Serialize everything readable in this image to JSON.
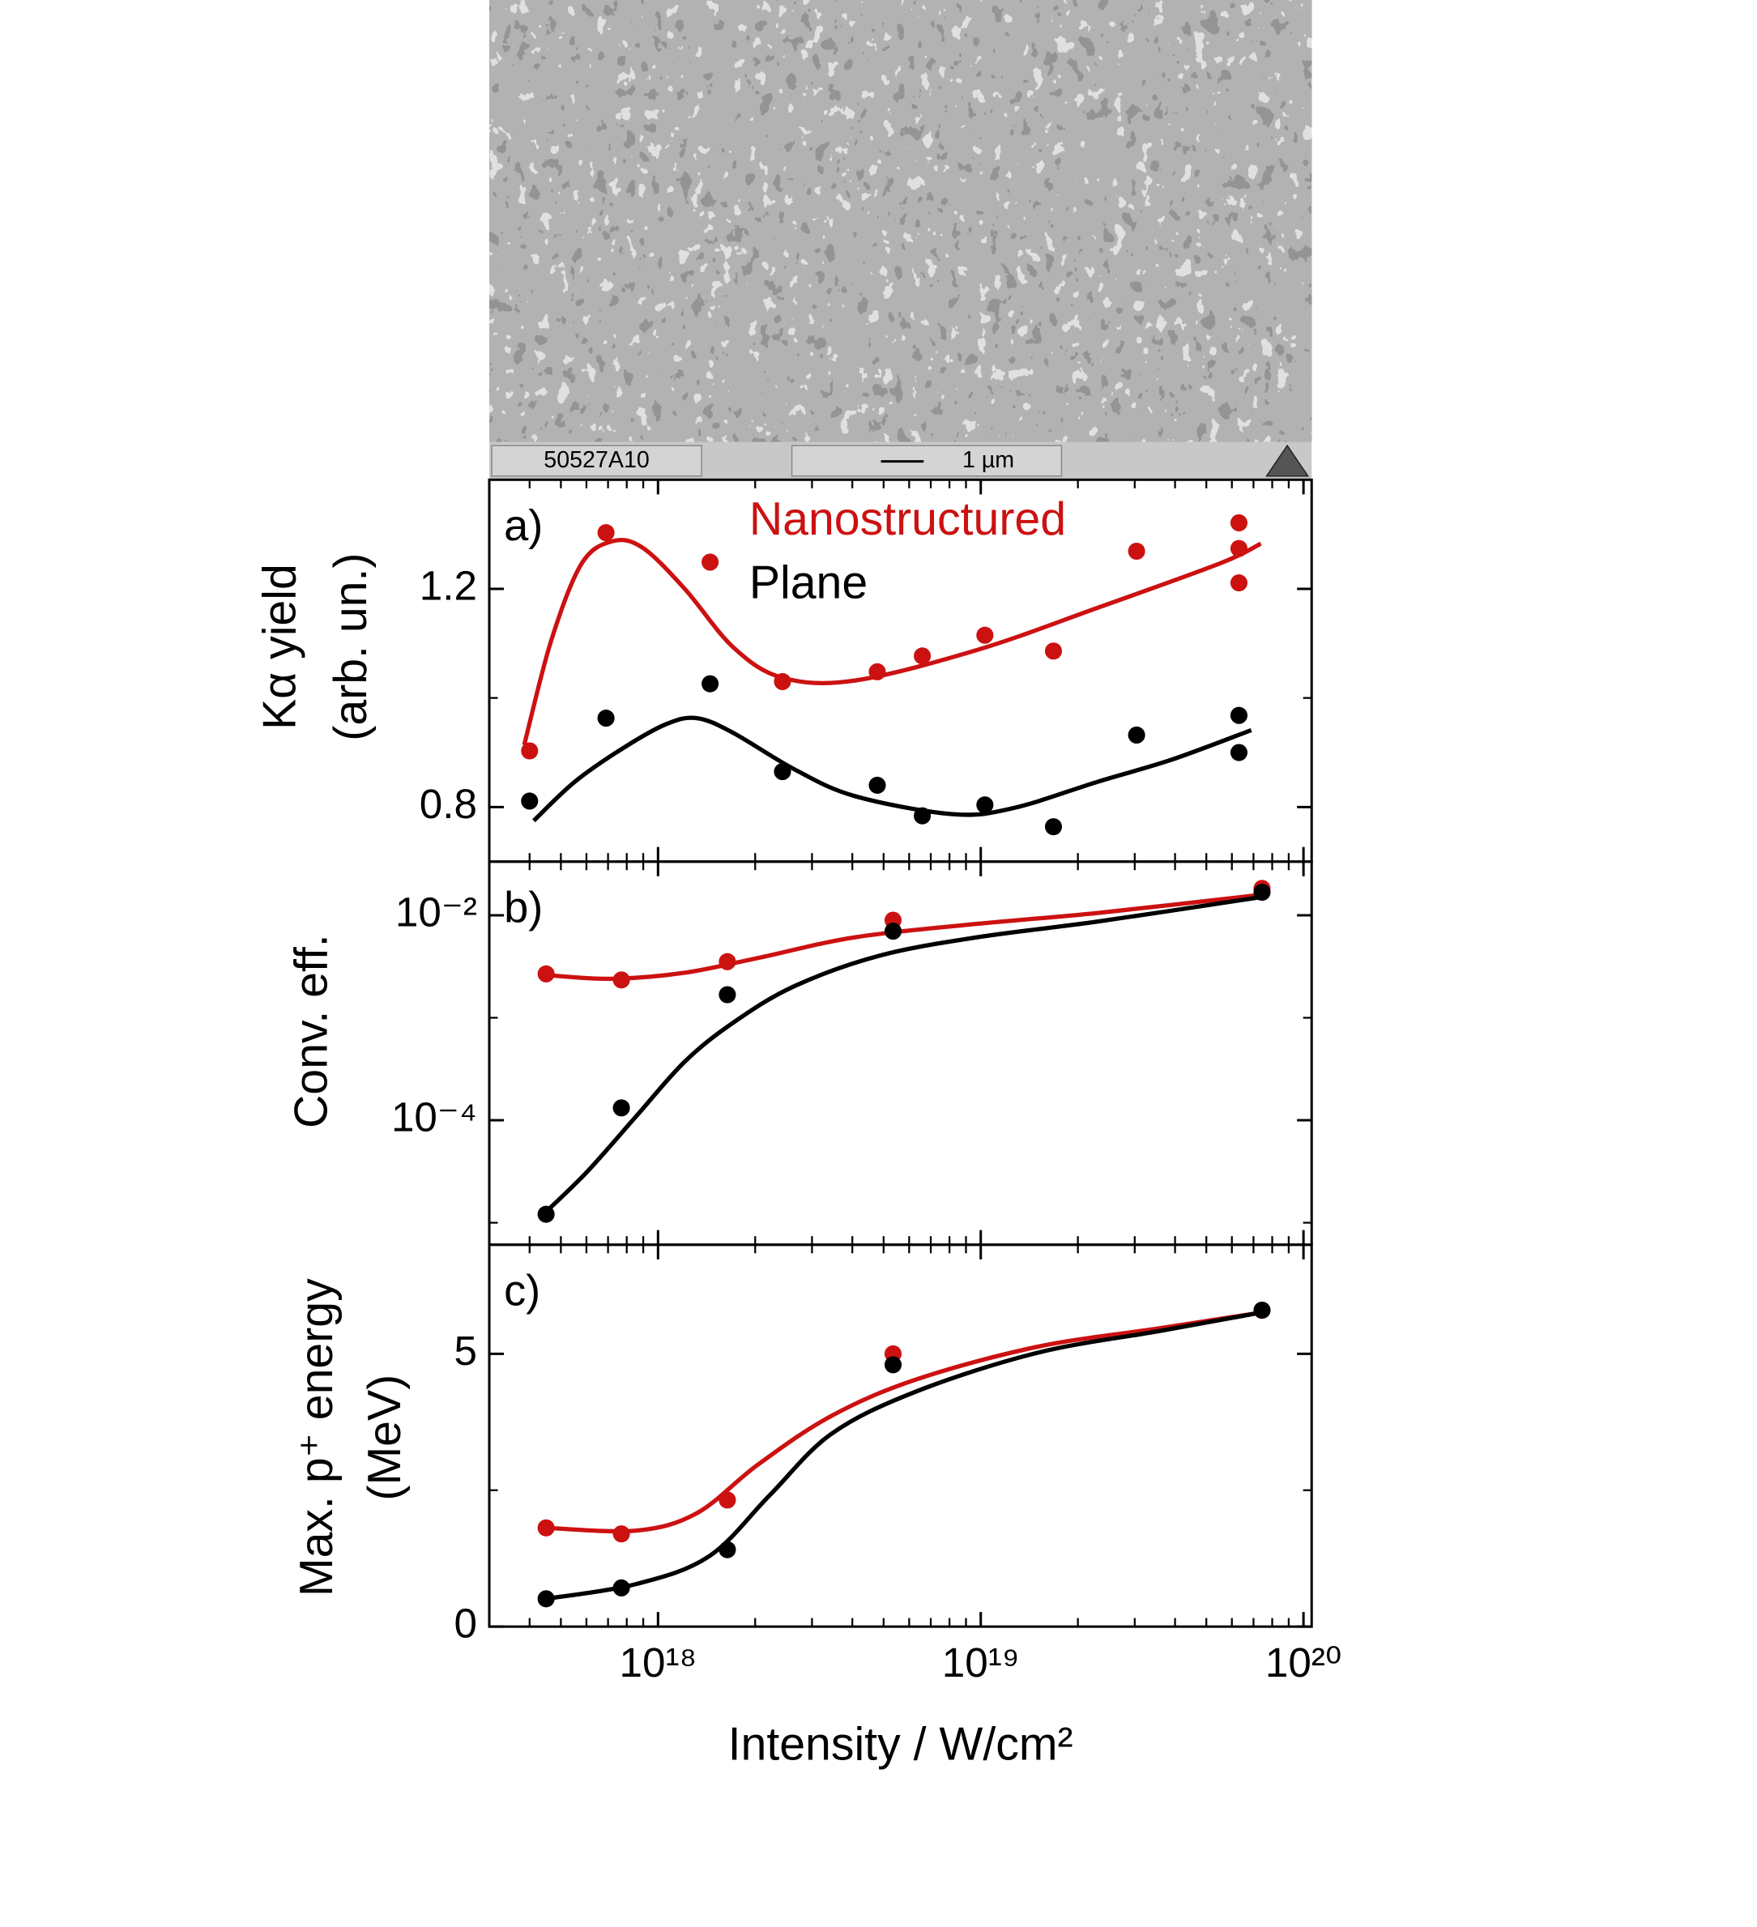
{
  "sem_image": {
    "label": "50527A10",
    "scale_bar": "1 µm"
  },
  "chart_data": [
    {
      "type": "scatter",
      "panel_label": "a)",
      "ylabel": [
        "Kα yield",
        "(arb. un.)"
      ],
      "xscale": "log",
      "xlim": [
        3e+17,
        1.06e+20
      ],
      "xticks": [
        1e+18,
        1e+19,
        1e+20
      ],
      "xticks_minor": [
        4e+17,
        5e+17,
        6e+17,
        7e+17,
        8e+17,
        9e+17,
        2e+18,
        3e+18,
        4e+18,
        5e+18,
        6e+18,
        7e+18,
        8e+18,
        9e+18,
        2e+19,
        3e+19,
        4e+19,
        5e+19,
        6e+19,
        7e+19,
        8e+19,
        9e+19
      ],
      "ylim": [
        0.7,
        1.4
      ],
      "yticks": [
        0.8,
        1.2
      ],
      "yticks_minor": [
        1.0
      ],
      "series": [
        {
          "name": "Nanostructured",
          "color": "#cc1111",
          "x": [
            4e+17,
            6.9e+17,
            1.45e+18,
            2.43e+18,
            4.78e+18,
            6.59e+18,
            1.03e+19,
            1.68e+19,
            3.04e+19,
            6.31e+19,
            6.31e+19,
            6.31e+19
          ],
          "values": [
            0.903,
            1.303,
            1.249,
            1.03,
            1.048,
            1.077,
            1.115,
            1.086,
            1.269,
            1.321,
            1.274,
            1.211
          ]
        },
        {
          "name": "Plane",
          "color": "#000000",
          "x": [
            4e+17,
            6.9e+17,
            1.45e+18,
            2.43e+18,
            4.78e+18,
            6.59e+18,
            1.03e+19,
            1.68e+19,
            3.04e+19,
            6.31e+19,
            6.31e+19
          ],
          "values": [
            0.811,
            0.963,
            1.026,
            0.865,
            0.84,
            0.784,
            0.804,
            0.764,
            0.932,
            0.968,
            0.9
          ]
        }
      ],
      "fits": [
        {
          "color": "#cc1111",
          "x": [
            3.85e+17,
            4.66e+17,
            5.78e+17,
            7.19e+17,
            8.93e+17,
            1.21e+18,
            1.71e+18,
            2.43e+18,
            4.08e+18,
            9.75e+18,
            2.32e+19,
            5.53e+19,
            7.38e+19
          ],
          "values": [
            0.914,
            1.104,
            1.245,
            1.287,
            1.276,
            1.2,
            1.093,
            1.037,
            1.032,
            1.088,
            1.166,
            1.247,
            1.283
          ]
        },
        {
          "color": "#000000",
          "x": [
            4.12e+17,
            5.54e+17,
            7.84e+17,
            1.06e+18,
            1.32e+18,
            1.71e+18,
            2.65e+18,
            4.08e+18,
            8.19e+18,
            1.26e+19,
            2.32e+19,
            3.91e+19,
            6.89e+19
          ],
          "values": [
            0.775,
            0.847,
            0.909,
            0.952,
            0.963,
            0.936,
            0.869,
            0.82,
            0.787,
            0.798,
            0.847,
            0.887,
            0.941
          ]
        }
      ]
    },
    {
      "type": "scatter",
      "panel_label": "b)",
      "ylabel": [
        "Conv. eff."
      ],
      "xscale": "log",
      "xlim": [
        3e+17,
        1.06e+20
      ],
      "xticks": [
        1e+18,
        1e+19,
        1e+20
      ],
      "xticks_minor": [
        4e+17,
        5e+17,
        6e+17,
        7e+17,
        8e+17,
        9e+17,
        2e+18,
        3e+18,
        4e+18,
        5e+18,
        6e+18,
        7e+18,
        8e+18,
        9e+18,
        2e+19,
        3e+19,
        4e+19,
        5e+19,
        6e+19,
        7e+19,
        8e+19,
        9e+19
      ],
      "yscale": "log",
      "ylim": [
        6.1e-06,
        0.0334
      ],
      "yticks": [
        {
          "value": 0.01,
          "label": "10⁻²"
        },
        {
          "value": 0.0001,
          "label": "10⁻⁴"
        }
      ],
      "yticks_minor": [
        0.001,
        1e-05
      ],
      "series": [
        {
          "name": "Nanostructured",
          "color": "#cc1111",
          "x": [
            4.5e+17,
            7.7e+17,
            1.64e+18,
            5.35e+18,
            7.44e+19
          ],
          "values": [
            0.00268,
            0.00234,
            0.00353,
            0.00896,
            0.0183
          ]
        },
        {
          "name": "Plane",
          "color": "#000000",
          "x": [
            4.5e+17,
            7.7e+17,
            1.64e+18,
            5.35e+18,
            7.44e+19
          ],
          "values": [
            1.21e-05,
            0.000132,
            0.00168,
            0.007,
            0.0168
          ]
        }
      ],
      "fits": [
        {
          "color": "#cc1111",
          "x": [
            4.5e+17,
            7.19e+17,
            1.21e+18,
            2.04e+18,
            4.08e+18,
            9.75e+18,
            2.32e+19,
            7.44e+19
          ],
          "values": [
            0.00261,
            0.0024,
            0.00275,
            0.00383,
            0.0061,
            0.00825,
            0.01057,
            0.0159
          ]
        },
        {
          "color": "#000000",
          "x": [
            4.5e+17,
            6.04e+17,
            8.55e+17,
            1.21e+18,
            1.71e+18,
            2.65e+18,
            4.86e+18,
            9.75e+18,
            2.32e+19,
            7.44e+19
          ],
          "values": [
            1.28e-05,
            3.16e-05,
            0.000109,
            0.000373,
            0.000896,
            0.00204,
            0.00404,
            0.0061,
            0.00872,
            0.0151
          ]
        }
      ]
    },
    {
      "type": "scatter",
      "panel_label": "c)",
      "ylabel": [
        "Max. p⁺ energy",
        "(MeV)"
      ],
      "xlabel": "Intensity / W/cm²",
      "xscale": "log",
      "xlim": [
        3e+17,
        1.06e+20
      ],
      "xticks": [
        {
          "value": 1e+18,
          "label": "10¹⁸"
        },
        {
          "value": 1e+19,
          "label": "10¹⁹"
        },
        {
          "value": 1e+20,
          "label": "10²⁰"
        }
      ],
      "xticks_minor": [
        4e+17,
        5e+17,
        6e+17,
        7e+17,
        8e+17,
        9e+17,
        2e+18,
        3e+18,
        4e+18,
        5e+18,
        6e+18,
        7e+18,
        8e+18,
        9e+18,
        2e+19,
        3e+19,
        4e+19,
        5e+19,
        6e+19,
        7e+19,
        8e+19,
        9e+19
      ],
      "ylim": [
        0,
        7
      ],
      "yticks": [
        0,
        5
      ],
      "yticks_minor": [
        2.5
      ],
      "series": [
        {
          "name": "Nanostructured",
          "color": "#cc1111",
          "x": [
            4.5e+17,
            7.7e+17,
            1.64e+18,
            5.35e+18,
            7.44e+19
          ],
          "values": [
            1.81,
            1.7,
            2.32,
            5.0,
            5.8
          ]
        },
        {
          "name": "Plane",
          "color": "#000000",
          "x": [
            4.5e+17,
            7.7e+17,
            1.64e+18,
            5.35e+18,
            7.44e+19
          ],
          "values": [
            0.51,
            0.71,
            1.41,
            4.8,
            5.8
          ]
        }
      ],
      "fits": [
        {
          "color": "#cc1111",
          "x": [
            4.5e+17,
            8.55e+17,
            1.32e+18,
            2.04e+18,
            3.44e+18,
            6.31e+18,
            1.5e+19,
            3.59e+19,
            7.44e+19
          ],
          "values": [
            1.81,
            1.76,
            2.08,
            2.97,
            3.86,
            4.53,
            5.13,
            5.47,
            5.76
          ]
        },
        {
          "color": "#000000",
          "x": [
            4.5e+17,
            8.55e+17,
            1.44e+18,
            2.22e+18,
            3.44e+18,
            6.31e+18,
            1.5e+19,
            3.59e+19,
            7.44e+19
          ],
          "values": [
            0.51,
            0.78,
            1.29,
            2.41,
            3.53,
            4.31,
            5.02,
            5.42,
            5.76
          ]
        }
      ]
    }
  ]
}
